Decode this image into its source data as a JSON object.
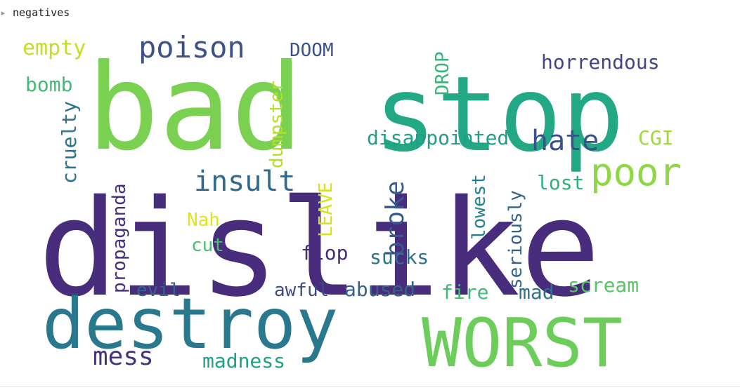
{
  "output": {
    "label": "negatives"
  },
  "wordcloud": {
    "words": [
      {
        "text": "bad",
        "color": "#7ad151"
      },
      {
        "text": "stop",
        "color": "#22a884"
      },
      {
        "text": "dislike",
        "color": "#472d7b"
      },
      {
        "text": "destroy",
        "color": "#2a788e"
      },
      {
        "text": "WORST",
        "color": "#6ccd5a"
      },
      {
        "text": "poison",
        "color": "#3b528b"
      },
      {
        "text": "empty",
        "color": "#c2df23"
      },
      {
        "text": "bomb",
        "color": "#3fbc73"
      },
      {
        "text": "cruelty",
        "color": "#2c728e"
      },
      {
        "text": "DOOM",
        "color": "#3b528b"
      },
      {
        "text": "dumpster",
        "color": "#b5de2b"
      },
      {
        "text": "DROP",
        "color": "#35b779"
      },
      {
        "text": "horrendous",
        "color": "#414487"
      },
      {
        "text": "disappointed",
        "color": "#1f9e89"
      },
      {
        "text": "hate",
        "color": "#3b528b"
      },
      {
        "text": "CGI",
        "color": "#a0da39"
      },
      {
        "text": "poor",
        "color": "#8fd744"
      },
      {
        "text": "insult",
        "color": "#31688e"
      },
      {
        "text": "propaganda",
        "color": "#46307e"
      },
      {
        "text": "Nah",
        "color": "#e1e418"
      },
      {
        "text": "cut",
        "color": "#4ac16d"
      },
      {
        "text": "LEAVE",
        "color": "#d8e219"
      },
      {
        "text": "broke",
        "color": "#38598c"
      },
      {
        "text": "lowest",
        "color": "#27808e"
      },
      {
        "text": "lost",
        "color": "#2db27d"
      },
      {
        "text": "seriously",
        "color": "#33628d"
      },
      {
        "text": "flop",
        "color": "#472c7a"
      },
      {
        "text": "sucks",
        "color": "#2c738e"
      },
      {
        "text": "evil",
        "color": "#33638d"
      },
      {
        "text": "awful",
        "color": "#3e4a89"
      },
      {
        "text": "abused",
        "color": "#34608d"
      },
      {
        "text": "fire",
        "color": "#3fbc73"
      },
      {
        "text": "mad",
        "color": "#2d718e"
      },
      {
        "text": "scream",
        "color": "#56c667"
      },
      {
        "text": "mess",
        "color": "#46337f"
      },
      {
        "text": "madness",
        "color": "#1fa187"
      }
    ]
  }
}
